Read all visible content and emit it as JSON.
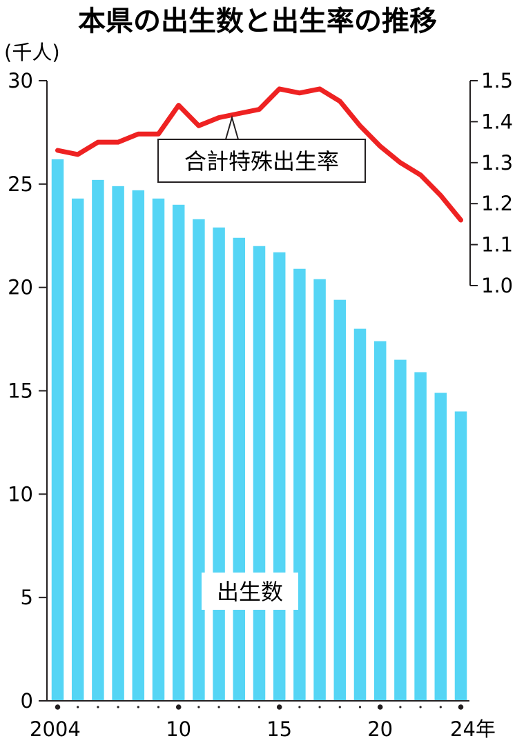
{
  "chart_data": {
    "type": "bar",
    "title": "本県の出生数と出生率の推移",
    "left_unit": "(千人)",
    "x_unit": "年",
    "x": [
      2004,
      2005,
      2006,
      2007,
      2008,
      2009,
      2010,
      2011,
      2012,
      2013,
      2014,
      2015,
      2016,
      2017,
      2018,
      2019,
      2020,
      2021,
      2022,
      2023,
      2024
    ],
    "x_tick_labels": [
      {
        "year": 2004,
        "label": "2004"
      },
      {
        "year": 2010,
        "label": "10"
      },
      {
        "year": 2015,
        "label": "15"
      },
      {
        "year": 2020,
        "label": "20"
      },
      {
        "year": 2024,
        "label": "24年"
      }
    ],
    "series": [
      {
        "name": "出生数",
        "type": "bar",
        "axis": "left",
        "color": "#55d5f5",
        "values": [
          26.2,
          24.3,
          25.2,
          24.9,
          24.7,
          24.3,
          24.0,
          23.3,
          22.9,
          22.4,
          22.0,
          21.7,
          20.9,
          20.4,
          19.4,
          18.0,
          17.4,
          16.5,
          15.9,
          14.9,
          14.0
        ]
      },
      {
        "name": "合計特殊出生率",
        "type": "line",
        "axis": "right",
        "color": "#ee2222",
        "values": [
          1.33,
          1.32,
          1.35,
          1.35,
          1.37,
          1.37,
          1.44,
          1.39,
          1.41,
          1.42,
          1.43,
          1.48,
          1.47,
          1.48,
          1.45,
          1.39,
          1.34,
          1.3,
          1.27,
          1.22,
          1.16
        ]
      }
    ],
    "left_axis": {
      "ylim": [
        0,
        30
      ],
      "ticks": [
        "0",
        "5",
        "10",
        "15",
        "20",
        "25",
        "30"
      ]
    },
    "right_axis": {
      "ylim": [
        1.0,
        1.5
      ],
      "ticks": [
        "1.0",
        "1.1",
        "1.2",
        "1.3",
        "1.4",
        "1.5"
      ]
    },
    "grid": false,
    "legend": "inline labels"
  }
}
